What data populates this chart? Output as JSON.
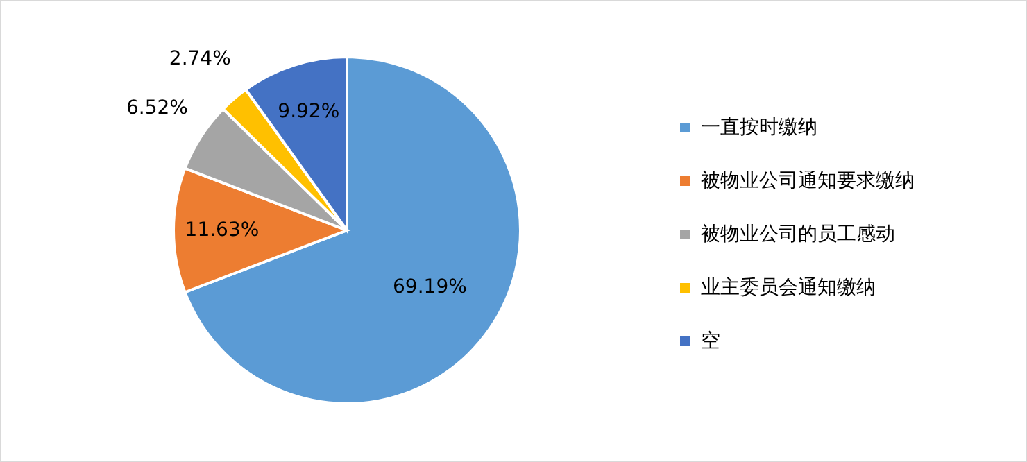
{
  "chart_data": {
    "type": "pie",
    "categories": [
      "一直按时缴纳",
      "被物业公司通知要求缴纳",
      "被物业公司的员工感动",
      "业主委员会通知缴纳",
      "空"
    ],
    "values": [
      69.19,
      11.63,
      6.52,
      2.74,
      9.92
    ],
    "colors": [
      "#5b9bd5",
      "#ed7d31",
      "#a5a5a5",
      "#ffc000",
      "#4472c4"
    ],
    "value_labels": [
      "69.19%",
      "11.63%",
      "6.52%",
      "2.74%",
      "9.92%"
    ],
    "legend": "right"
  }
}
